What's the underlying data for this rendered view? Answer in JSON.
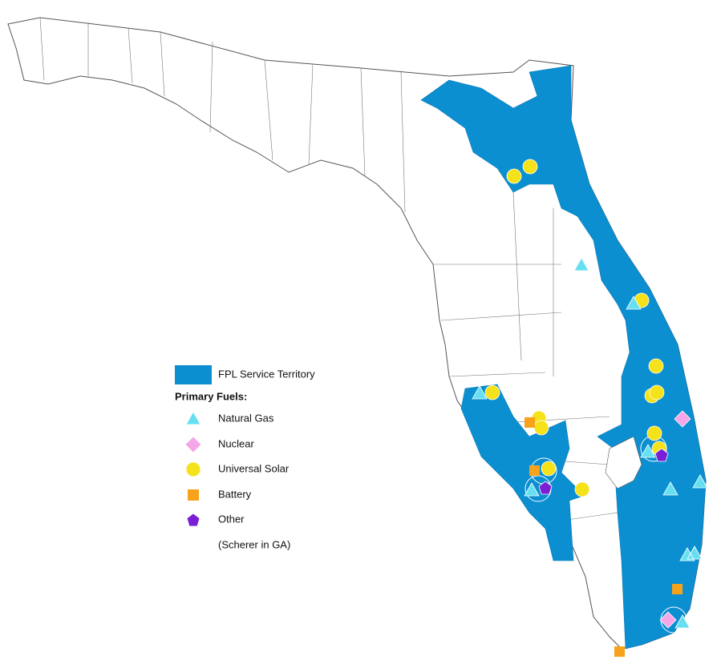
{
  "legend": {
    "territory": "FPL Service Territory",
    "heading": "Primary Fuels:",
    "items": [
      "Natural Gas",
      "Nuclear",
      "Universal Solar",
      "Battery",
      "Other"
    ],
    "note": "(Scherer in GA)"
  }
}
